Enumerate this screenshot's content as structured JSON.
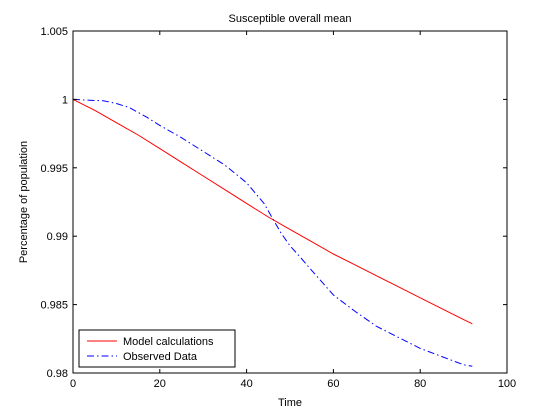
{
  "chart_data": {
    "type": "line",
    "title": "Susceptible overall mean",
    "xlabel": "Time",
    "ylabel": "Percentage of population",
    "xlim": [
      0,
      100
    ],
    "ylim": [
      0.98,
      1.005
    ],
    "xticks": [
      0,
      20,
      40,
      60,
      80,
      100
    ],
    "xtick_labels": [
      "0",
      "20",
      "40",
      "60",
      "80",
      "100"
    ],
    "yticks": [
      0.98,
      0.985,
      0.99,
      0.995,
      1,
      1.005
    ],
    "ytick_labels": [
      "0.98",
      "0.985",
      "0.99",
      "0.995",
      "1",
      "1.005"
    ],
    "grid": false,
    "legend_position": "bottom-left",
    "series": [
      {
        "name": "Model calculations",
        "color": "#ff0000",
        "dash": "solid",
        "x": [
          0,
          5,
          10,
          15,
          20,
          25,
          30,
          35,
          40,
          45,
          50,
          55,
          60,
          65,
          70,
          75,
          80,
          85,
          90,
          92
        ],
        "y": [
          1.0,
          0.9992,
          0.9983,
          0.9974,
          0.9964,
          0.9954,
          0.9944,
          0.9934,
          0.9924,
          0.9914,
          0.9905,
          0.9896,
          0.9887,
          0.9879,
          0.9871,
          0.9863,
          0.9855,
          0.9847,
          0.9839,
          0.9836
        ]
      },
      {
        "name": "Observed Data",
        "color": "#0000ff",
        "dash": "dashdot",
        "x": [
          0,
          3,
          7,
          10,
          13,
          17,
          20,
          25,
          30,
          35,
          40,
          44,
          46,
          48,
          50,
          52,
          55,
          60,
          65,
          70,
          75,
          80,
          85,
          90,
          92
        ],
        "y": [
          1.0,
          0.99995,
          0.9999,
          0.9997,
          0.9994,
          0.9987,
          0.9981,
          0.9972,
          0.9962,
          0.9952,
          0.9939,
          0.9924,
          0.9913,
          0.9902,
          0.9893,
          0.9886,
          0.9875,
          0.9857,
          0.9845,
          0.9834,
          0.9826,
          0.9818,
          0.9812,
          0.9806,
          0.9805
        ]
      }
    ]
  }
}
